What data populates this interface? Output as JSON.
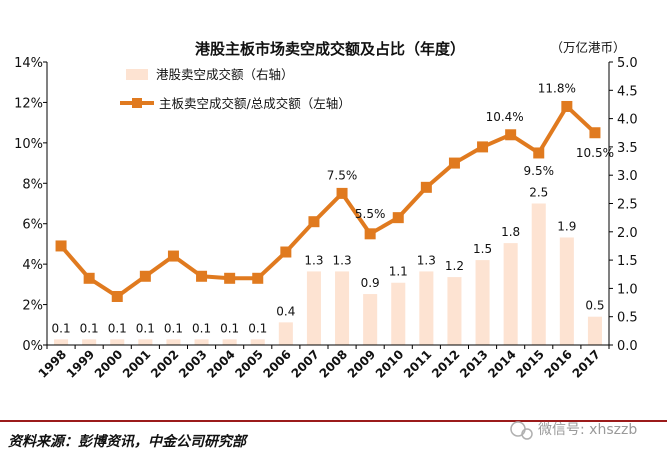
{
  "chart_data": {
    "type": "bar+line",
    "title": "港股主板市场卖空成交额及占比（年度）",
    "right_axis_unit": "（万亿港币）",
    "categories": [
      "1998",
      "1999",
      "2000",
      "2001",
      "2002",
      "2003",
      "2004",
      "2005",
      "2006",
      "2007",
      "2008",
      "2009",
      "2010",
      "2011",
      "2012",
      "2013",
      "2014",
      "2015",
      "2016",
      "2017"
    ],
    "series": [
      {
        "name": "港股卖空成交额（右轴）",
        "type": "bar",
        "axis": "right",
        "color": "#fde3d2",
        "values": [
          0.1,
          0.1,
          0.1,
          0.1,
          0.1,
          0.1,
          0.1,
          0.1,
          0.4,
          1.3,
          1.3,
          0.9,
          1.1,
          1.3,
          1.2,
          1.5,
          1.8,
          2.5,
          1.9,
          0.5
        ],
        "labels": [
          "0.1",
          "0.1",
          "0.1",
          "0.1",
          "0.1",
          "0.1",
          "0.1",
          "0.1",
          "0.4",
          "1.3",
          "1.3",
          "0.9",
          "1.1",
          "1.3",
          "1.2",
          "1.5",
          "1.8",
          "2.5",
          "1.9",
          "0.5"
        ]
      },
      {
        "name": "主板卖空成交额/总成交额（左轴）",
        "type": "line",
        "axis": "left",
        "color": "#e07a1f",
        "values": [
          4.9,
          3.3,
          2.4,
          3.4,
          4.4,
          3.4,
          3.3,
          3.3,
          4.6,
          6.1,
          7.5,
          5.5,
          6.3,
          7.8,
          9.0,
          9.8,
          10.4,
          9.5,
          11.8,
          10.5
        ],
        "labels": {
          "10": "7.5%",
          "11": "5.5%",
          "16": "10.4%",
          "17": "9.5%",
          "18": "11.8%",
          "19": "10.5%"
        }
      }
    ],
    "left_axis": {
      "ticks": [
        "0%",
        "2%",
        "4%",
        "6%",
        "8%",
        "10%",
        "12%",
        "14%"
      ],
      "min": 0,
      "max": 14
    },
    "right_axis": {
      "ticks": [
        "0.0",
        "0.5",
        "1.0",
        "1.5",
        "2.0",
        "2.5",
        "3.0",
        "3.5",
        "4.0",
        "4.5",
        "5.0"
      ],
      "min": 0,
      "max": 5
    },
    "legend_position": "top-left",
    "grid": false
  },
  "footer": {
    "source": "资料来源：彭博资讯，中金公司研究部",
    "watermark": "微信号: xhszzb",
    "rule_color": "#9b1b1b"
  }
}
